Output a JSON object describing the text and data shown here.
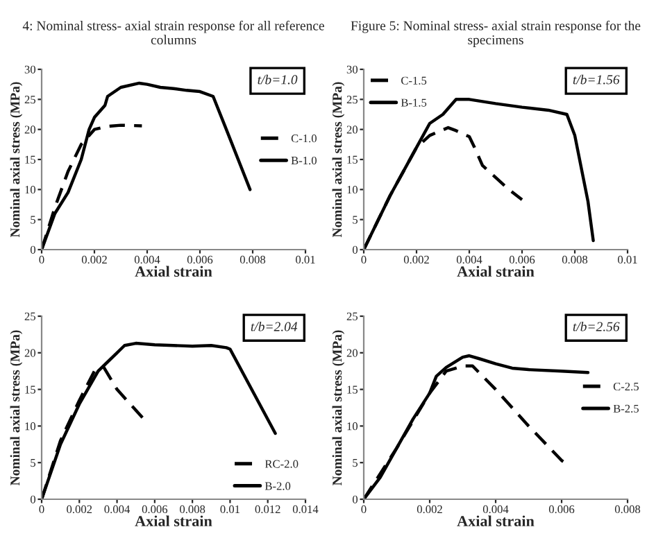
{
  "chart_data": [
    {
      "type": "line",
      "title": "4: Nominal stress- axial strain response for all reference columns",
      "xlabel": "Axial strain",
      "ylabel": "Nominal axial stress (MPa)",
      "annotations": [
        "t/b=1.0"
      ],
      "xlim": [
        0,
        0.01
      ],
      "xticks": [
        0,
        0.002,
        0.004,
        0.006,
        0.008,
        0.01
      ],
      "ylim": [
        0,
        30
      ],
      "yticks": [
        0,
        5,
        10,
        15,
        20,
        25,
        30
      ],
      "legend": "right",
      "grid": false,
      "series": [
        {
          "name": "C-1.0",
          "color": "#000000",
          "line_style": "dashed",
          "x": [
            0,
            0.0005,
            0.001,
            0.0015,
            0.002,
            0.0025,
            0.003,
            0.0038
          ],
          "values": [
            0,
            7,
            13,
            17.5,
            20,
            20.5,
            20.7,
            20.6
          ]
        },
        {
          "name": "B-1.0",
          "color": "#000000",
          "line_style": "solid",
          "x": [
            0,
            0.0005,
            0.001,
            0.0015,
            0.0018,
            0.002,
            0.0024,
            0.0025,
            0.003,
            0.0037,
            0.004,
            0.0045,
            0.005,
            0.0055,
            0.006,
            0.0065,
            0.007,
            0.0079
          ],
          "values": [
            0,
            6,
            9.5,
            15,
            20,
            22,
            24,
            25.5,
            27,
            27.7,
            27.5,
            27,
            26.8,
            26.5,
            26.3,
            25.5,
            20,
            10
          ]
        }
      ]
    },
    {
      "type": "line",
      "title": "Figure 5: Nominal stress- axial strain response for the specimens",
      "xlabel": "Axial strain",
      "ylabel": "Nominal axial stress (MPa)",
      "annotations": [
        "t/b=1.56"
      ],
      "xlim": [
        0,
        0.01
      ],
      "xticks": [
        0,
        0.002,
        0.004,
        0.006,
        0.008,
        0.01
      ],
      "ylim": [
        0,
        30
      ],
      "yticks": [
        0,
        5,
        10,
        15,
        20,
        25,
        30
      ],
      "legend": "top left",
      "grid": false,
      "series": [
        {
          "name": "C-1.5",
          "color": "#000000",
          "line_style": "dashed",
          "x": [
            0,
            0.001,
            0.002,
            0.0025,
            0.0032,
            0.0035,
            0.004,
            0.0042,
            0.0045,
            0.0055,
            0.006
          ],
          "values": [
            0,
            9,
            17,
            19,
            20.3,
            19.8,
            18.8,
            17,
            14,
            10,
            8.3
          ]
        },
        {
          "name": "B-1.5",
          "color": "#000000",
          "line_style": "solid",
          "x": [
            0,
            0.001,
            0.002,
            0.0025,
            0.003,
            0.0035,
            0.004,
            0.005,
            0.006,
            0.007,
            0.0077,
            0.008,
            0.0085,
            0.0087
          ],
          "values": [
            0,
            9,
            17,
            21,
            22.5,
            25,
            25,
            24.3,
            23.7,
            23.2,
            22.5,
            19,
            8,
            1.5
          ]
        }
      ]
    },
    {
      "type": "line",
      "xlabel": "Axial strain",
      "ylabel": "Nominal axial stress (MPa)",
      "annotations": [
        "t/b=2.04"
      ],
      "xlim": [
        0,
        0.014
      ],
      "xticks": [
        0,
        0.002,
        0.004,
        0.006,
        0.008,
        0.01,
        0.012,
        0.014
      ],
      "ylim": [
        0,
        25
      ],
      "yticks": [
        0,
        5,
        10,
        15,
        20,
        25
      ],
      "legend": "bottom right",
      "grid": false,
      "series": [
        {
          "name": "RC-2.0",
          "color": "#000000",
          "line_style": "dashed",
          "x": [
            0,
            0.001,
            0.002,
            0.0028,
            0.0033,
            0.004,
            0.0054
          ],
          "values": [
            0,
            8,
            13.5,
            17.5,
            18,
            15,
            11
          ]
        },
        {
          "name": "B-2.0",
          "color": "#000000",
          "line_style": "solid",
          "x": [
            0,
            0.001,
            0.002,
            0.003,
            0.004,
            0.0044,
            0.005,
            0.006,
            0.007,
            0.008,
            0.009,
            0.0098,
            0.01,
            0.0124
          ],
          "values": [
            0,
            7.5,
            13,
            17.5,
            20,
            21,
            21.3,
            21.1,
            21,
            20.9,
            21,
            20.7,
            20.5,
            9
          ]
        }
      ]
    },
    {
      "type": "line",
      "xlabel": "Axial strain",
      "ylabel": "Nominal axial stress (MPa)",
      "annotations": [
        "t/b=2.56"
      ],
      "xlim": [
        0,
        0.008
      ],
      "xticks": [
        0,
        0.002,
        0.004,
        0.006,
        0.008
      ],
      "ylim": [
        0,
        25
      ],
      "yticks": [
        0,
        5,
        10,
        15,
        20,
        25
      ],
      "legend": "right",
      "grid": false,
      "series": [
        {
          "name": "C-2.5",
          "color": "#000000",
          "line_style": "dashed",
          "x": [
            0,
            0.001,
            0.002,
            0.0025,
            0.003,
            0.0033,
            0.004,
            0.005,
            0.006,
            0.0061
          ],
          "values": [
            0,
            7,
            14.5,
            17.5,
            18.2,
            18.2,
            15,
            10,
            5.3,
            5
          ]
        },
        {
          "name": "B-2.5",
          "color": "#000000",
          "line_style": "solid",
          "x": [
            0,
            0.0005,
            0.001,
            0.0015,
            0.002,
            0.0022,
            0.0025,
            0.003,
            0.0032,
            0.0035,
            0.004,
            0.0045,
            0.005,
            0.006,
            0.0068
          ],
          "values": [
            0,
            3,
            7,
            11,
            14.5,
            16.8,
            18,
            19.4,
            19.6,
            19.2,
            18.5,
            17.9,
            17.7,
            17.5,
            17.3
          ]
        }
      ]
    }
  ]
}
